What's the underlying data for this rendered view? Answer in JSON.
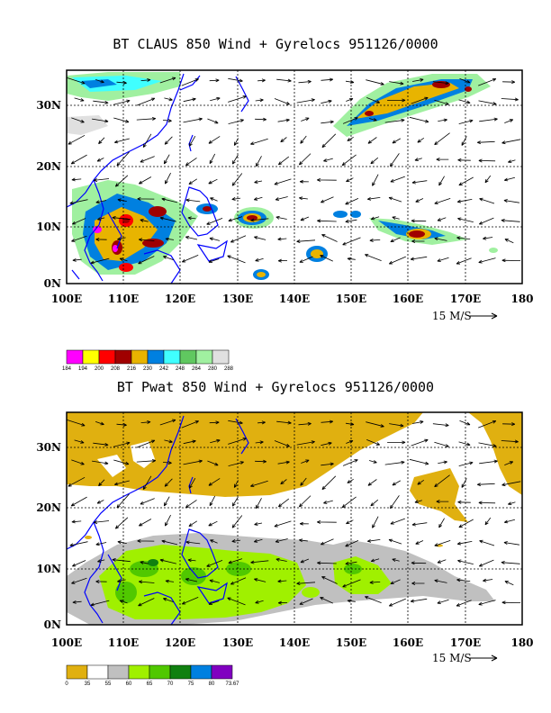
{
  "panels": [
    {
      "title": "BT CLAUS 850 Wind + Gyrelocs 951126/0000",
      "x_ticks": [
        "100E",
        "110E",
        "120E",
        "130E",
        "140E",
        "150E",
        "160E",
        "170E",
        "180"
      ],
      "y_ticks": [
        "30N",
        "20N",
        "10N",
        "0N"
      ],
      "vector_ref": "15 M/S",
      "legend": {
        "colors": [
          "#ff00ff",
          "#ffff00",
          "#ff0000",
          "#a00000",
          "#e8b400",
          "#0080e0",
          "#40ffff",
          "#60c860",
          "#a0f0a0",
          "#e0e0e0"
        ],
        "labels": [
          "184",
          "194",
          "200",
          "208",
          "216",
          "230",
          "242",
          "248",
          "264",
          "280",
          "288"
        ]
      }
    },
    {
      "title": "BT Pwat 850 Wind + Gyrelocs 951126/0000",
      "x_ticks": [
        "100E",
        "110E",
        "120E",
        "130E",
        "140E",
        "150E",
        "160E",
        "170E",
        "180"
      ],
      "y_ticks": [
        "30N",
        "20N",
        "10N",
        "0N"
      ],
      "vector_ref": "15 M/S",
      "legend": {
        "colors": [
          "#e0b010",
          "#ffffff",
          "#c0c0c0",
          "#a0f000",
          "#50c800",
          "#108010",
          "#0080e0",
          "#8000c0"
        ],
        "labels": [
          "0",
          "35",
          "55",
          "60",
          "65",
          "70",
          "75",
          "80",
          "73.67"
        ]
      }
    }
  ],
  "map_extent": {
    "lon": [
      100,
      180
    ],
    "lat": [
      0,
      35
    ]
  }
}
